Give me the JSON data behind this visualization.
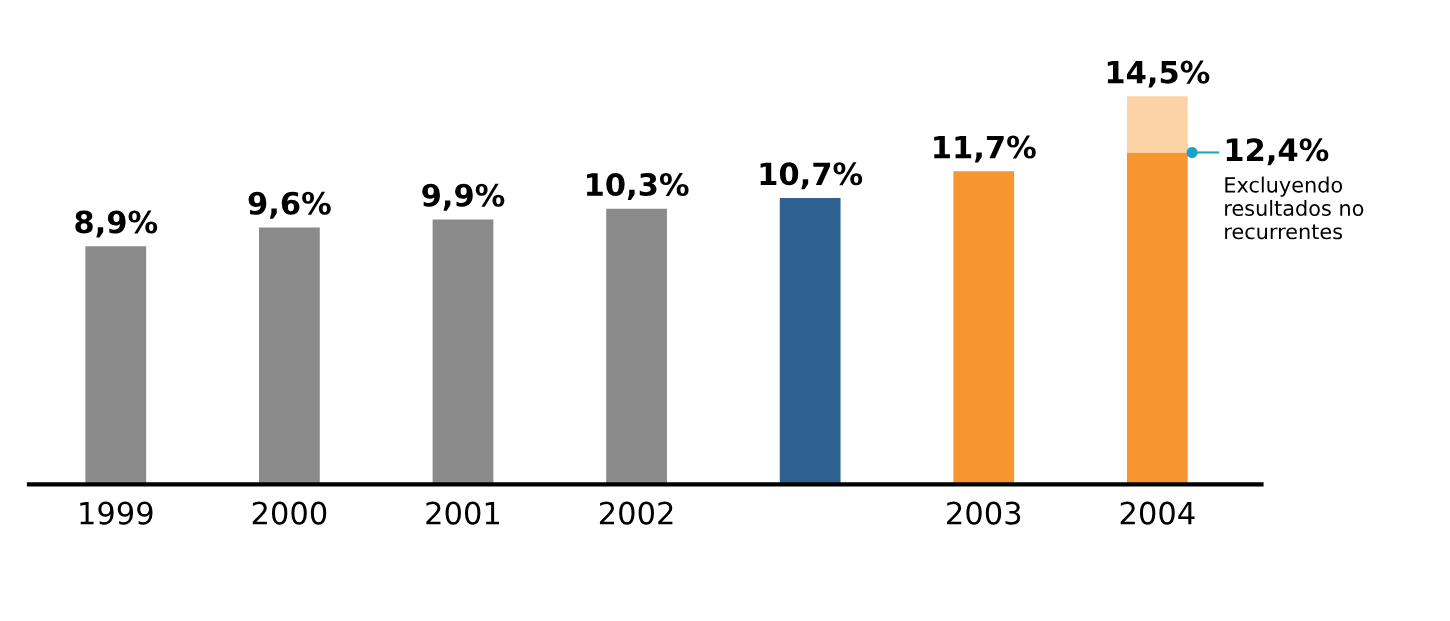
{
  "chart_data": {
    "type": "bar",
    "stacked": true,
    "categories": [
      "1999",
      "2000",
      "2001",
      "2002",
      null,
      "2003",
      "2004"
    ],
    "series": [
      {
        "colors": [
          "#8a8a8a",
          "#8a8a8a",
          "#8a8a8a",
          "#8a8a8a",
          "#2e6090",
          "#f7952f",
          "#f7952f"
        ],
        "values": [
          8.9,
          9.6,
          9.9,
          10.3,
          10.7,
          11.7,
          12.4
        ],
        "value_labels": [
          "8,9%",
          "9,6%",
          "9,9%",
          "10,3%",
          "10,7%",
          "11,7%",
          null
        ]
      },
      {
        "color": "#fdd3a6",
        "values": [
          null,
          null,
          null,
          null,
          null,
          null,
          2.1
        ]
      }
    ],
    "totals": [
      null,
      null,
      null,
      null,
      null,
      null,
      "14,5%"
    ],
    "annotations": [
      {
        "text": "12,4%",
        "x": "2004",
        "y": 12.4
      },
      "Excluyendo\nresultados no\nrecurrentes"
    ],
    "grid": false
  }
}
